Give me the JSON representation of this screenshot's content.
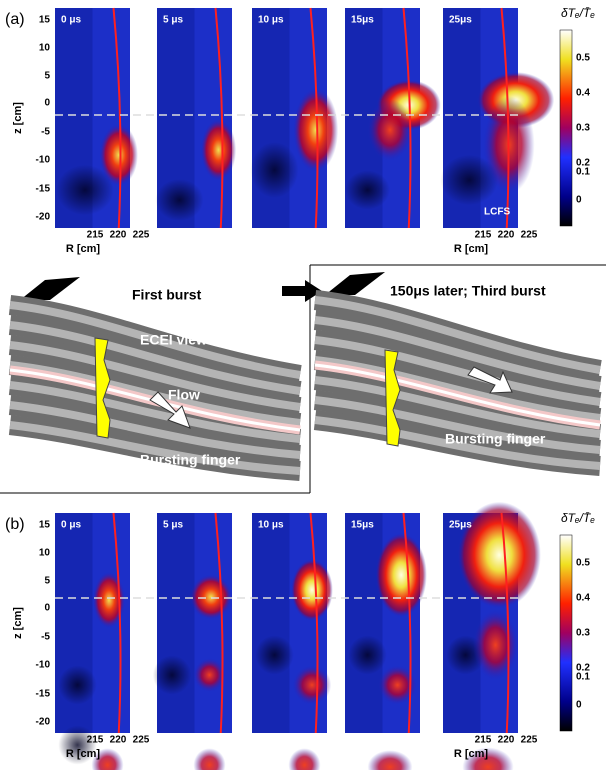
{
  "panel_a": {
    "label": "(a)",
    "frames": [
      "0 μs",
      "5 μs",
      "10 μs",
      "15μs",
      "25μs"
    ],
    "lcfs_label": "LCFS"
  },
  "panel_b": {
    "label": "(b)",
    "frames": [
      "0 μs",
      "5 μs",
      "10 μs",
      "15μs",
      "25μs"
    ]
  },
  "axes": {
    "z_label": "z [cm]",
    "r_label": "R [cm]",
    "z_ticks": [
      15,
      10,
      5,
      0,
      -5,
      -10,
      -15,
      -20
    ],
    "r_ticks": [
      215,
      220,
      225
    ]
  },
  "colorbar": {
    "label": "δTₑ/T̄ₑ",
    "ticks": [
      0.5,
      0.4,
      0.3,
      0.2,
      0.1,
      0
    ]
  },
  "illustration": {
    "left": {
      "title": "First burst",
      "view": "ECEI view",
      "flow": "Flow",
      "finger": "Bursting finger"
    },
    "right": {
      "title": "150μs later; Third burst",
      "finger": "Bursting finger"
    }
  }
}
